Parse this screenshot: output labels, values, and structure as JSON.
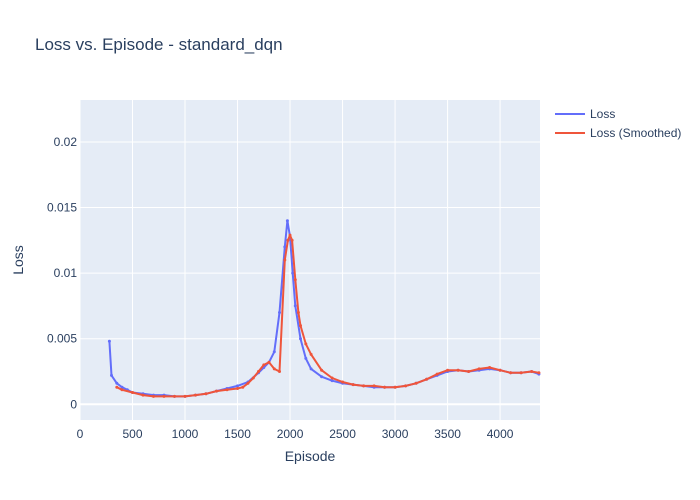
{
  "chart_data": {
    "type": "line",
    "title": "Loss vs. Episode - standard_dqn",
    "xlabel": "Episode",
    "ylabel": "Loss",
    "xlim": [
      0,
      4380
    ],
    "ylim": [
      -0.0012,
      0.0232
    ],
    "x_ticks": [
      0,
      500,
      1000,
      1500,
      2000,
      2500,
      3000,
      3500,
      4000
    ],
    "y_ticks": [
      0,
      0.005,
      0.01,
      0.015,
      0.02
    ],
    "y_tick_labels": [
      "0",
      "0.005",
      "0.01",
      "0.015",
      "0.02"
    ],
    "grid": true,
    "legend_position": "top-right",
    "series": [
      {
        "name": "Loss",
        "color": "#636efa",
        "x": [
          280,
          300,
          350,
          400,
          450,
          500,
          600,
          700,
          800,
          900,
          1000,
          1100,
          1200,
          1300,
          1400,
          1500,
          1600,
          1700,
          1750,
          1800,
          1850,
          1900,
          1950,
          1975,
          2000,
          2025,
          2050,
          2100,
          2150,
          2200,
          2300,
          2400,
          2500,
          2600,
          2700,
          2800,
          2900,
          3000,
          3100,
          3200,
          3300,
          3400,
          3500,
          3600,
          3700,
          3800,
          3900,
          4000,
          4100,
          4200,
          4300,
          4370
        ],
        "values": [
          0.0048,
          0.0022,
          0.0016,
          0.0013,
          0.0011,
          0.0009,
          0.0008,
          0.0007,
          0.0007,
          0.0006,
          0.0006,
          0.0007,
          0.0008,
          0.001,
          0.0012,
          0.0014,
          0.0017,
          0.0024,
          0.0028,
          0.0032,
          0.004,
          0.007,
          0.012,
          0.014,
          0.0128,
          0.01,
          0.0075,
          0.005,
          0.0035,
          0.0027,
          0.0021,
          0.0018,
          0.0016,
          0.0015,
          0.0014,
          0.0013,
          0.0013,
          0.0013,
          0.0014,
          0.0016,
          0.0019,
          0.0022,
          0.0025,
          0.0026,
          0.0025,
          0.0026,
          0.0027,
          0.0026,
          0.0024,
          0.0024,
          0.0025,
          0.0023
        ]
      },
      {
        "name": "Loss (Smoothed)",
        "color": "#ef553b",
        "x": [
          350,
          400,
          500,
          600,
          700,
          800,
          900,
          1000,
          1100,
          1200,
          1300,
          1400,
          1500,
          1550,
          1600,
          1650,
          1700,
          1750,
          1800,
          1850,
          1900,
          1950,
          1980,
          2000,
          2020,
          2050,
          2080,
          2100,
          2150,
          2200,
          2300,
          2400,
          2500,
          2600,
          2700,
          2800,
          2900,
          3000,
          3100,
          3200,
          3300,
          3400,
          3500,
          3600,
          3700,
          3800,
          3900,
          4000,
          4100,
          4200,
          4300,
          4370
        ],
        "values": [
          0.0013,
          0.0011,
          0.0009,
          0.0007,
          0.0006,
          0.0006,
          0.0006,
          0.0006,
          0.0007,
          0.0008,
          0.001,
          0.0011,
          0.0012,
          0.0013,
          0.0016,
          0.002,
          0.0025,
          0.003,
          0.0032,
          0.0027,
          0.0025,
          0.011,
          0.0125,
          0.0129,
          0.0125,
          0.0095,
          0.007,
          0.006,
          0.0046,
          0.0038,
          0.0026,
          0.002,
          0.0017,
          0.0015,
          0.0014,
          0.0014,
          0.0013,
          0.0013,
          0.0014,
          0.0016,
          0.0019,
          0.0023,
          0.0026,
          0.0026,
          0.0025,
          0.0027,
          0.0028,
          0.0026,
          0.0024,
          0.0024,
          0.0025,
          0.0024
        ]
      }
    ]
  }
}
